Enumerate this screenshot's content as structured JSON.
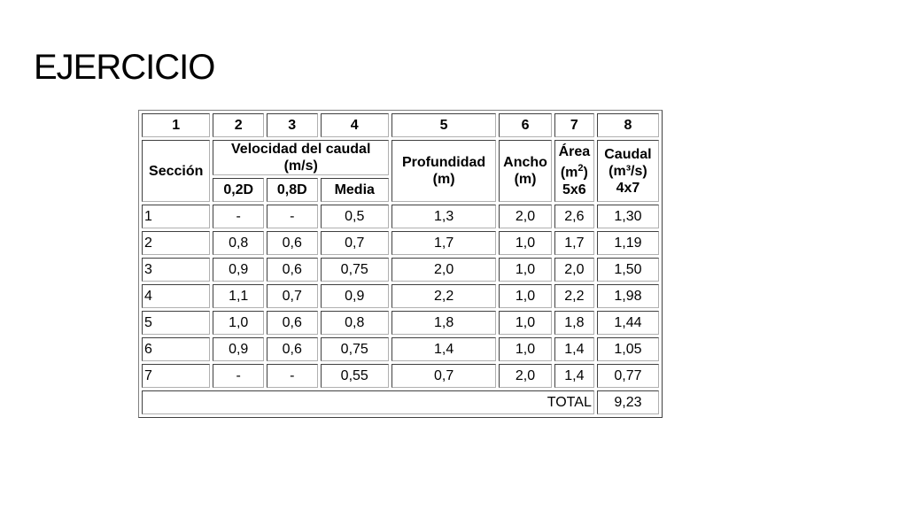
{
  "title": "EJERCICIO",
  "table": {
    "numbers": [
      "1",
      "2",
      "3",
      "4",
      "5",
      "6",
      "7",
      "8"
    ],
    "headers": {
      "seccion": "Sección",
      "velocidad": "Velocidad del caudal (m/s)",
      "sub_02d": "0,2D",
      "sub_08d": "0,8D",
      "sub_media": "Media",
      "profundidad": "Profundidad (m)",
      "ancho": "Ancho (m)",
      "area_line1": "Área",
      "area_line2": "(m",
      "area_sup": "2",
      "area_line2_end": ")",
      "area_line3": "5x6",
      "caudal_line1": "Caudal",
      "caudal_line2": "(m³/s)",
      "caudal_line3": "4x7"
    },
    "rows": [
      {
        "seccion": "1",
        "v02": "-",
        "v08": "-",
        "media": "0,5",
        "prof": "1,3",
        "ancho": "2,0",
        "area": "2,6",
        "caudal": "1,30"
      },
      {
        "seccion": "2",
        "v02": "0,8",
        "v08": "0,6",
        "media": "0,7",
        "prof": "1,7",
        "ancho": "1,0",
        "area": "1,7",
        "caudal": "1,19"
      },
      {
        "seccion": "3",
        "v02": "0,9",
        "v08": "0,6",
        "media": "0,75",
        "prof": "2,0",
        "ancho": "1,0",
        "area": "2,0",
        "caudal": "1,50"
      },
      {
        "seccion": "4",
        "v02": "1,1",
        "v08": "0,7",
        "media": "0,9",
        "prof": "2,2",
        "ancho": "1,0",
        "area": "2,2",
        "caudal": "1,98"
      },
      {
        "seccion": "5",
        "v02": "1,0",
        "v08": "0,6",
        "media": "0,8",
        "prof": "1,8",
        "ancho": "1,0",
        "area": "1,8",
        "caudal": "1,44"
      },
      {
        "seccion": "6",
        "v02": "0,9",
        "v08": "0,6",
        "media": "0,75",
        "prof": "1,4",
        "ancho": "1,0",
        "area": "1,4",
        "caudal": "1,05"
      },
      {
        "seccion": "7",
        "v02": "-",
        "v08": "-",
        "media": "0,55",
        "prof": "0,7",
        "ancho": "2,0",
        "area": "1,4",
        "caudal": "0,77"
      }
    ],
    "total_label": "TOTAL",
    "total_value": "9,23"
  }
}
